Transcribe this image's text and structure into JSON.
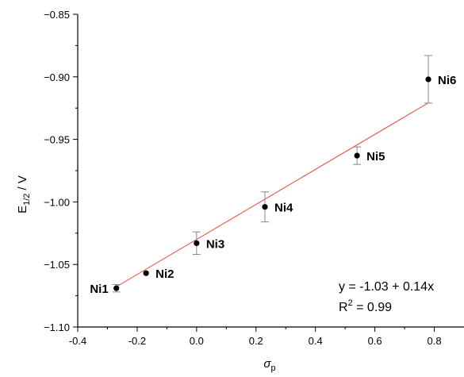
{
  "chart_data": {
    "type": "scatter",
    "xlabel": "σ",
    "xlabel_sub": "p",
    "ylabel": "E",
    "ylabel_sub": "1/2",
    "ylabel_suffix": " / V",
    "xlim": [
      -0.4,
      0.9
    ],
    "ylim": [
      -1.1,
      -0.85
    ],
    "x_ticks": [
      -0.4,
      -0.2,
      0.0,
      0.2,
      0.4,
      0.6,
      0.8
    ],
    "x_tick_labels": [
      "-0.4",
      "-0.2",
      "0.0",
      "0.2",
      "0.4",
      "0.6",
      "0.8"
    ],
    "y_ticks": [
      -1.1,
      -1.05,
      -1.0,
      -0.95,
      -0.9,
      -0.85
    ],
    "y_tick_labels": [
      "−1.10",
      "−1.05",
      "−1.00",
      "−0.95",
      "−0.90",
      "−0.85"
    ],
    "points": [
      {
        "label": "Ni1",
        "x": -0.27,
        "y": -1.069,
        "err": 0.003
      },
      {
        "label": "Ni2",
        "x": -0.17,
        "y": -1.057,
        "err": 0.0
      },
      {
        "label": "Ni3",
        "x": 0.0,
        "y": -1.033,
        "err": 0.009
      },
      {
        "label": "Ni4",
        "x": 0.23,
        "y": -1.004,
        "err": 0.012
      },
      {
        "label": "Ni5",
        "x": 0.54,
        "y": -0.963,
        "err": 0.007
      },
      {
        "label": "Ni6",
        "x": 0.78,
        "y": -0.902,
        "err": 0.019
      }
    ],
    "fit": {
      "intercept": -1.03,
      "slope": 0.14,
      "x_range": [
        -0.27,
        0.78
      ],
      "color": "#e8473b",
      "equation": "y = -1.03 + 0.14x",
      "r2_prefix": "R",
      "r2_sup": "2",
      "r2_value": " = 0.99"
    },
    "marker_color": "#000000",
    "errorbar_color": "#888888"
  }
}
